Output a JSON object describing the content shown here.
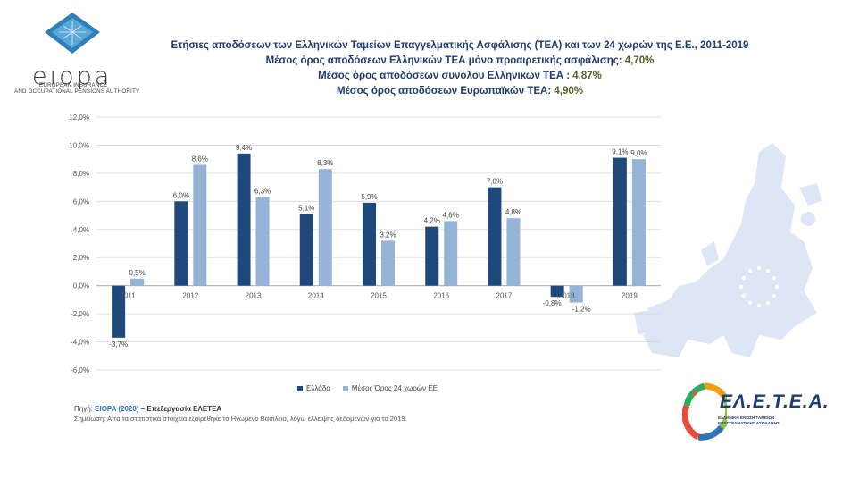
{
  "colors": {
    "greece": "#1f497d",
    "eu": "#95b3d7",
    "title": "#1f3c6e",
    "value_green": "#4f6228",
    "map": "#dce6f5"
  },
  "logos": {
    "eiopa_word": "eıopa",
    "eiopa_line1": "EUROPEAN INSURANCE",
    "eiopa_line2": "AND OCCUPATIONAL PENSIONS AUTHORITY",
    "eleta_word": "ΕΛ.Ε.Τ.Ε.Α.",
    "eleta_line1": "ΕΛΛΗΝΙΚΗ ΕΝΩΣΗ ΤΑΜΕΙΩΝ",
    "eleta_line2": "ΕΠΑΓΓΕΛΜΑΤΙΚΗΣ ΑΣΦΑΛΙΣΗΣ"
  },
  "titles": {
    "line1": "Ετήσιες αποδόσεων των Ελληνικών Ταμείων Επαγγελματικής Ασφάλισης (ΤΕΑ) και των 24 χωρών της Ε.Ε., 2011-2019",
    "line2_text": "Μέσος όρος αποδόσεων Ελληνικών ΤΕΑ μόνο προαιρετικής ασφάλισης:",
    "line2_value": "4,70%",
    "line3_text": "Μέσος όρος αποδόσεων συνόλου Ελληνικών ΤΕΑ :",
    "line3_value": "4,87%",
    "line4_text": "Μέσος όρος αποδόσεων Ευρωπαϊκών ΤΕΑ:",
    "line4_value": "4,90%"
  },
  "chart_data": {
    "type": "bar",
    "categories": [
      "2011",
      "2012",
      "2013",
      "2014",
      "2015",
      "2016",
      "2017",
      "2018",
      "2019"
    ],
    "series": [
      {
        "name": "Ελλάδα",
        "values": [
          -3.7,
          6.0,
          9.4,
          5.1,
          5.9,
          4.2,
          7.0,
          -0.8,
          9.1
        ],
        "labels": [
          "-3,7%",
          "6,0%",
          "9,4%",
          "5,1%",
          "5,9%",
          "4,2%",
          "7,0%",
          "-0,8%",
          "9,1%"
        ]
      },
      {
        "name": "Μέσος Όρος 24 χωρών ΕΕ",
        "values": [
          0.5,
          8.6,
          6.3,
          8.3,
          3.2,
          4.6,
          4.8,
          -1.2,
          9.0
        ],
        "labels": [
          "0,5%",
          "8,6%",
          "6,3%",
          "8,3%",
          "3,2%",
          "4,6%",
          "4,8%",
          "-1,2%",
          "9,0%"
        ]
      }
    ],
    "yticks": [
      12,
      10,
      8,
      6,
      4,
      2,
      0,
      -2,
      -4,
      -6
    ],
    "ytick_labels": [
      "12,0%",
      "10,0%",
      "8,0%",
      "6,0%",
      "4,0%",
      "2,0%",
      "0,0%",
      "-2,0%",
      "-4,0%",
      "-6,0%"
    ],
    "ylim": [
      -6,
      12
    ],
    "grid": true,
    "legend_position": "bottom"
  },
  "source": {
    "prefix": "Πηγή:",
    "link": "EIOPA (2020)",
    "processing": "– Επεξεργασία ΕΛΕΤΕΑ"
  },
  "note": "Σημείωση: Από τα στατιστικά στοιχεία εξαιρέθηκε το Ηνωμένο Βασίλειο, λόγω έλλειψης δεδομένων για το 2019."
}
